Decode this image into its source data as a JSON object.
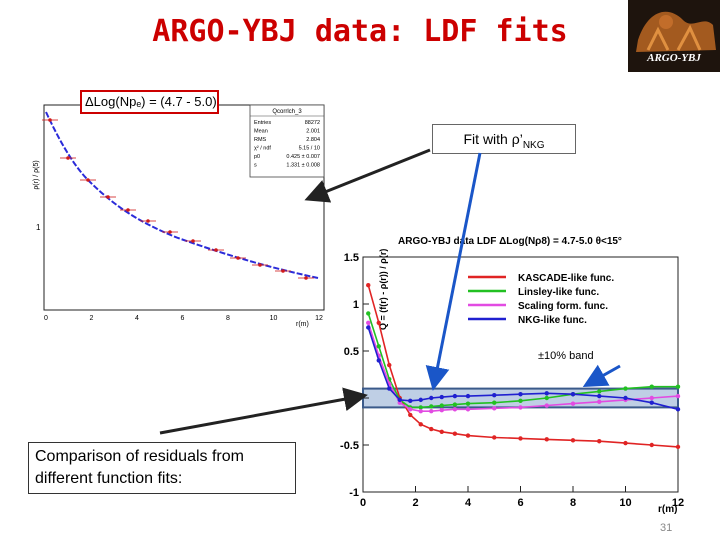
{
  "slide": {
    "title": "ARGO-YBJ data: LDF fits",
    "logo_text": "ARGO-YBJ",
    "range_label": "ΔLog(Npₑ) = (4.7 - 5.0)",
    "fit_with": {
      "prefix": "Fit with ρ’",
      "subscript": "NKG"
    },
    "band_label": "±10% band",
    "comparison_text": "Comparison of residuals from different function fits:",
    "slide_number": "31"
  },
  "left_plot": {
    "y_label": "ρ(r) / ρ(5)",
    "x_label": "r(m)",
    "y_ticks": [
      "1"
    ],
    "x_ticks": [
      "0",
      "2",
      "4",
      "6",
      "8",
      "10",
      "12"
    ],
    "stats_box": {
      "title": "Qcorrlch_3",
      "rows": [
        {
          "key": "Entries",
          "value": "88272"
        },
        {
          "key": "Mean",
          "value": "2.001"
        },
        {
          "key": "RMS",
          "value": "2.804"
        },
        {
          "key": "χ² / ndf",
          "value": "5.15 / 10"
        },
        {
          "key": "p0",
          "value": "0.425 ± 0.007"
        },
        {
          "key": "s",
          "value": "1.331 ± 0.008"
        }
      ]
    },
    "colors": {
      "curve": "#2b2bd9",
      "points": "#d11a1a"
    }
  },
  "chart_data": {
    "type": "line",
    "title": "ARGO-YBJ data LDF   ΔLog(Nρ8) = 4.7-5.0  θ<15°",
    "xlabel": "r(m)",
    "ylabel": "Q = (f(r) - ρ(r)) / ρ(r)",
    "xlim": [
      0,
      12
    ],
    "ylim": [
      -1,
      1.5
    ],
    "x_ticks": [
      "0",
      "2",
      "4",
      "6",
      "8",
      "10",
      "12"
    ],
    "y_ticks": [
      "-1",
      "-0.5",
      "0",
      "0.5",
      "1",
      "1.5"
    ],
    "band": [
      -0.1,
      0.1
    ],
    "x": [
      0.2,
      0.6,
      1.0,
      1.4,
      1.8,
      2.2,
      2.6,
      3.0,
      3.5,
      4.0,
      5.0,
      6.0,
      7.0,
      8.0,
      9.0,
      10.0,
      11.0,
      12.0
    ],
    "series": [
      {
        "name": "KASCADE-like func.",
        "color": "#e02424",
        "values": [
          1.2,
          0.8,
          0.35,
          0.0,
          -0.18,
          -0.28,
          -0.33,
          -0.36,
          -0.38,
          -0.4,
          -0.42,
          -0.43,
          -0.44,
          -0.45,
          -0.46,
          -0.48,
          -0.5,
          -0.52
        ]
      },
      {
        "name": "Linsley-like func.",
        "color": "#22c022",
        "values": [
          0.9,
          0.55,
          0.2,
          -0.02,
          -0.1,
          -0.1,
          -0.09,
          -0.08,
          -0.07,
          -0.06,
          -0.05,
          -0.03,
          0.0,
          0.04,
          0.07,
          0.1,
          0.12,
          0.12
        ]
      },
      {
        "name": "Scaling form. func.",
        "color": "#e24be2",
        "values": [
          0.8,
          0.45,
          0.15,
          -0.05,
          -0.12,
          -0.14,
          -0.14,
          -0.13,
          -0.12,
          -0.12,
          -0.11,
          -0.1,
          -0.08,
          -0.06,
          -0.04,
          -0.02,
          0.0,
          0.02
        ]
      },
      {
        "name": "NKG-like func.",
        "color": "#2020d0",
        "values": [
          0.75,
          0.4,
          0.1,
          -0.02,
          -0.03,
          -0.02,
          0.0,
          0.01,
          0.02,
          0.02,
          0.03,
          0.04,
          0.05,
          0.04,
          0.02,
          0.0,
          -0.05,
          -0.12
        ]
      }
    ],
    "legend_position": "top-right",
    "grid": false
  }
}
